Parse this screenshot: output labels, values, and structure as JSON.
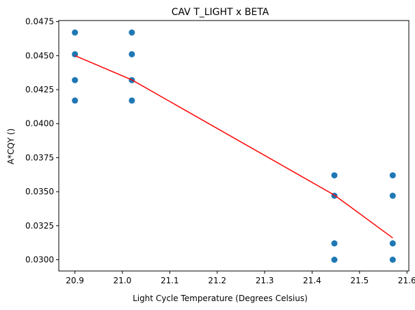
{
  "chart_data": {
    "type": "scatter",
    "title": "CAV T_LIGHT x BETA",
    "xlabel": "Light Cycle Temperature (Degrees Celsius)",
    "ylabel": "A*CQY ()",
    "xlim": [
      20.866,
      21.604
    ],
    "ylim": [
      0.02917,
      0.04758
    ],
    "x_ticks": [
      20.9,
      21.0,
      21.1,
      21.2,
      21.3,
      21.4,
      21.5,
      21.6
    ],
    "x_tick_labels": [
      "20.9",
      "21.0",
      "21.1",
      "21.2",
      "21.3",
      "21.4",
      "21.5",
      "21.6"
    ],
    "y_ticks": [
      0.03,
      0.0325,
      0.035,
      0.0375,
      0.04,
      0.0425,
      0.045,
      0.0475
    ],
    "y_tick_labels": [
      "0.0300",
      "0.0325",
      "0.0350",
      "0.0375",
      "0.0400",
      "0.0425",
      "0.0450",
      "0.0475"
    ],
    "grid": false,
    "series": [
      {
        "kind": "scatter",
        "color": "#1f77b4",
        "points": [
          {
            "x": 20.9,
            "y": 0.0467
          },
          {
            "x": 20.9,
            "y": 0.0451
          },
          {
            "x": 20.9,
            "y": 0.0432
          },
          {
            "x": 20.9,
            "y": 0.0417
          },
          {
            "x": 21.02,
            "y": 0.0467
          },
          {
            "x": 21.02,
            "y": 0.0451
          },
          {
            "x": 21.02,
            "y": 0.0432
          },
          {
            "x": 21.02,
            "y": 0.0417
          },
          {
            "x": 21.447,
            "y": 0.0362
          },
          {
            "x": 21.447,
            "y": 0.0347
          },
          {
            "x": 21.447,
            "y": 0.0312
          },
          {
            "x": 21.447,
            "y": 0.03
          },
          {
            "x": 21.57,
            "y": 0.0362
          },
          {
            "x": 21.57,
            "y": 0.0347
          },
          {
            "x": 21.57,
            "y": 0.0312
          },
          {
            "x": 21.57,
            "y": 0.03
          }
        ]
      },
      {
        "kind": "line",
        "color": "#ff0000",
        "points": [
          {
            "x": 20.9,
            "y": 0.045
          },
          {
            "x": 21.02,
            "y": 0.04322
          },
          {
            "x": 21.447,
            "y": 0.03475
          },
          {
            "x": 21.57,
            "y": 0.0316
          }
        ]
      }
    ]
  }
}
